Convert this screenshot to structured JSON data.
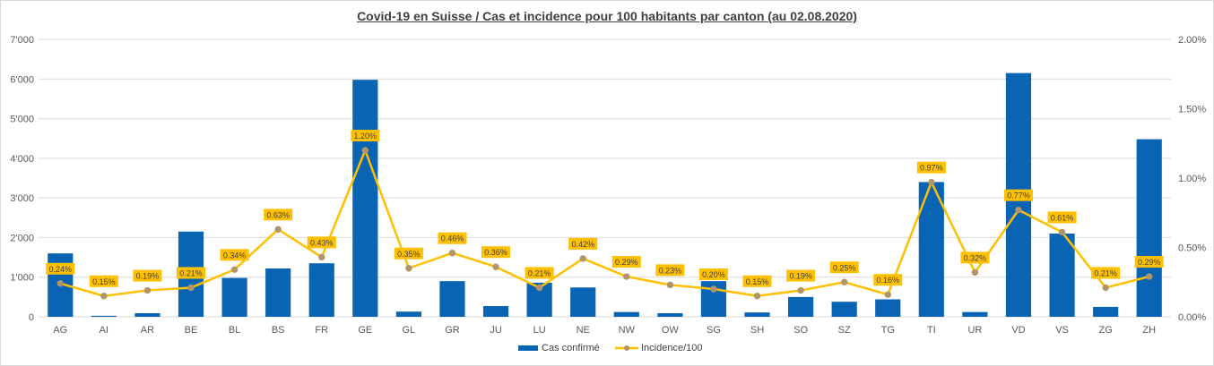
{
  "chart_data": {
    "type": "bar",
    "title": "Covid-19 en Suisse / Cas et incidence pour 100 habitants par canton (au 02.08.2020)",
    "categories": [
      "AG",
      "AI",
      "AR",
      "BE",
      "BL",
      "BS",
      "FR",
      "GE",
      "GL",
      "GR",
      "JU",
      "LU",
      "NE",
      "NW",
      "OW",
      "SG",
      "SH",
      "SO",
      "SZ",
      "TG",
      "TI",
      "UR",
      "VD",
      "VS",
      "ZG",
      "ZH"
    ],
    "series": [
      {
        "name": "Cas confirmé",
        "type": "bar",
        "axis": "left",
        "color": "#0a64b4",
        "values": [
          1600,
          25,
          90,
          2150,
          980,
          1220,
          1350,
          5980,
          130,
          900,
          270,
          860,
          740,
          120,
          90,
          900,
          110,
          500,
          380,
          440,
          3400,
          120,
          6150,
          2100,
          250,
          4480
        ]
      },
      {
        "name": "Incidence/100",
        "type": "line",
        "axis": "right",
        "color": "#ffc000",
        "marker_color": "#b0956a",
        "values": [
          0.24,
          0.15,
          0.19,
          0.21,
          0.34,
          0.63,
          0.43,
          1.2,
          0.35,
          0.46,
          0.36,
          0.21,
          0.42,
          0.29,
          0.23,
          0.2,
          0.15,
          0.19,
          0.25,
          0.16,
          0.97,
          0.32,
          0.77,
          0.61,
          0.21,
          0.29
        ],
        "labels": [
          "0.24%",
          "0.15%",
          "0.19%",
          "0.21%",
          "0.34%",
          "0.63%",
          "0.43%",
          "1.20%",
          "0.35%",
          "0.46%",
          "0.36%",
          "0.21%",
          "0.42%",
          "0.29%",
          "0.23%",
          "0.20%",
          "0.15%",
          "0.19%",
          "0.25%",
          "0.16%",
          "0.97%",
          "0.32%",
          "0.77%",
          "0.61%",
          "0.21%",
          "0.29%"
        ]
      }
    ],
    "y_left": {
      "min": 0,
      "max": 7000,
      "ticks": [
        "0",
        "1'000",
        "2'000",
        "3'000",
        "4'000",
        "5'000",
        "6'000",
        "7'000"
      ]
    },
    "y_right": {
      "min": 0,
      "max": 2.0,
      "ticks": [
        "0.00%",
        "0.50%",
        "1.00%",
        "1.50%",
        "2.00%"
      ]
    },
    "grid": true,
    "legend_position": "bottom"
  }
}
